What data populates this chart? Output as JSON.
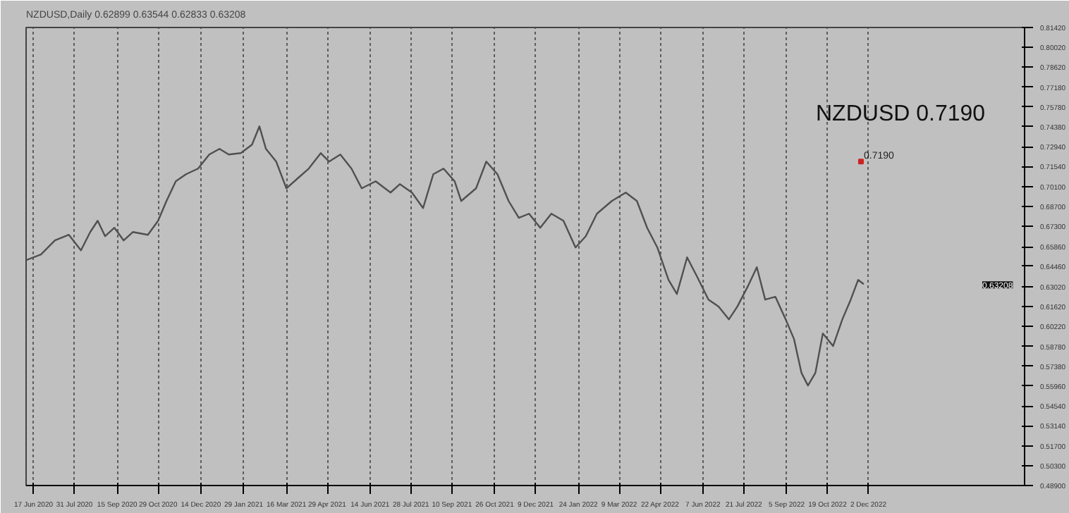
{
  "chart_data": {
    "type": "line",
    "title": "NZDUSD,Daily 0.62899 0.63544 0.62833 0.63208",
    "x": [
      "2020-06-09",
      "2020-06-25",
      "2020-07-10",
      "2020-07-25",
      "2020-08-07",
      "2020-08-17",
      "2020-08-25",
      "2020-09-02",
      "2020-09-12",
      "2020-09-22",
      "2020-10-02",
      "2020-10-18",
      "2020-10-29",
      "2020-11-07",
      "2020-11-17",
      "2020-11-28",
      "2020-12-11",
      "2020-12-23",
      "2021-01-03",
      "2021-01-13",
      "2021-01-26",
      "2021-02-07",
      "2021-02-15",
      "2021-02-22",
      "2021-03-05",
      "2021-03-16",
      "2021-03-28",
      "2021-04-09",
      "2021-04-22",
      "2021-05-01",
      "2021-05-13",
      "2021-05-25",
      "2021-06-05",
      "2021-06-20",
      "2021-07-06",
      "2021-07-16",
      "2021-07-29",
      "2021-08-10",
      "2021-08-21",
      "2021-09-01",
      "2021-09-13",
      "2021-09-20",
      "2021-10-06",
      "2021-10-17",
      "2021-10-29",
      "2021-11-10",
      "2021-11-21",
      "2021-12-02",
      "2021-12-14",
      "2021-12-26",
      "2022-01-08",
      "2022-01-21",
      "2022-02-01",
      "2022-02-13",
      "2022-03-01",
      "2022-03-16",
      "2022-03-28",
      "2022-04-08",
      "2022-04-19",
      "2022-05-01",
      "2022-05-10",
      "2022-05-21",
      "2022-06-01",
      "2022-06-13",
      "2022-06-24",
      "2022-07-05",
      "2022-07-14",
      "2022-07-25",
      "2022-08-04",
      "2022-08-13",
      "2022-08-24",
      "2022-09-04",
      "2022-09-13",
      "2022-09-21",
      "2022-09-28",
      "2022-10-06",
      "2022-10-14",
      "2022-10-25",
      "2022-11-04",
      "2022-11-13",
      "2022-11-21",
      "2022-11-27"
    ],
    "series": [
      {
        "color": "#505050",
        "values": [
          0.649,
          0.653,
          0.663,
          0.667,
          0.656,
          0.669,
          0.677,
          0.666,
          0.672,
          0.663,
          0.669,
          0.667,
          0.677,
          0.691,
          0.705,
          0.71,
          0.714,
          0.724,
          0.728,
          0.724,
          0.725,
          0.731,
          0.744,
          0.728,
          0.719,
          0.7,
          0.707,
          0.714,
          0.725,
          0.719,
          0.724,
          0.714,
          0.7,
          0.705,
          0.697,
          0.703,
          0.697,
          0.686,
          0.71,
          0.714,
          0.705,
          0.691,
          0.7,
          0.719,
          0.71,
          0.691,
          0.679,
          0.682,
          0.672,
          0.682,
          0.677,
          0.658,
          0.666,
          0.682,
          0.691,
          0.697,
          0.691,
          0.672,
          0.658,
          0.635,
          0.625,
          0.651,
          0.637,
          0.621,
          0.616,
          0.607,
          0.616,
          0.63,
          0.644,
          0.621,
          0.623,
          0.607,
          0.593,
          0.569,
          0.56,
          0.569,
          0.597,
          0.588,
          0.607,
          0.621,
          0.635,
          0.632
        ]
      }
    ],
    "xlim": [
      "2020-06-09",
      "2023-05-19"
    ],
    "xticks": [
      {
        "value": "2020-06-17",
        "label": "17 Jun 2020"
      },
      {
        "value": "2020-07-31",
        "label": "31 Jul 2020"
      },
      {
        "value": "2020-09-15",
        "label": "15 Sep 2020"
      },
      {
        "value": "2020-10-29",
        "label": "29 Oct 2020"
      },
      {
        "value": "2020-12-14",
        "label": "14 Dec 2020"
      },
      {
        "value": "2021-01-29",
        "label": "29 Jan 2021"
      },
      {
        "value": "2021-03-16",
        "label": "16 Mar 2021"
      },
      {
        "value": "2021-04-29",
        "label": "29 Apr 2021"
      },
      {
        "value": "2021-06-14",
        "label": "14 Jun 2021"
      },
      {
        "value": "2021-07-28",
        "label": "28 Jul 2021"
      },
      {
        "value": "2021-09-10",
        "label": "10 Sep 2021"
      },
      {
        "value": "2021-10-26",
        "label": "26 Oct 2021"
      },
      {
        "value": "2021-12-09",
        "label": "9 Dec 2021"
      },
      {
        "value": "2022-01-24",
        "label": "24 Jan 2022"
      },
      {
        "value": "2022-03-09",
        "label": "9 Mar 2022"
      },
      {
        "value": "2022-04-22",
        "label": "22 Apr 2022"
      },
      {
        "value": "2022-06-07",
        "label": "7 Jun 2022"
      },
      {
        "value": "2022-07-21",
        "label": "21 Jul 2022"
      },
      {
        "value": "2022-09-05",
        "label": "5 Sep 2022"
      },
      {
        "value": "2022-10-19",
        "label": "19 Oct 2022"
      },
      {
        "value": "2022-12-02",
        "label": "2 Dec 2022"
      }
    ],
    "ylim": [
      0.489,
      0.8142
    ],
    "yticks": [
      {
        "value": 0.8142,
        "label": "0.81420"
      },
      {
        "value": 0.8002,
        "label": "0.80020"
      },
      {
        "value": 0.7862,
        "label": "0.78620"
      },
      {
        "value": 0.7718,
        "label": "0.77180"
      },
      {
        "value": 0.7578,
        "label": "0.75780"
      },
      {
        "value": 0.7438,
        "label": "0.74380"
      },
      {
        "value": 0.7294,
        "label": "0.72940"
      },
      {
        "value": 0.7154,
        "label": "0.71540"
      },
      {
        "value": 0.701,
        "label": "0.70100"
      },
      {
        "value": 0.687,
        "label": "0.68700"
      },
      {
        "value": 0.673,
        "label": "0.67300"
      },
      {
        "value": 0.6586,
        "label": "0.65860"
      },
      {
        "value": 0.6446,
        "label": "0.64460"
      },
      {
        "value": 0.6302,
        "label": "0.63020"
      },
      {
        "value": 0.6162,
        "label": "0.61620"
      },
      {
        "value": 0.6022,
        "label": "0.60220"
      },
      {
        "value": 0.5878,
        "label": "0.58780"
      },
      {
        "value": 0.5738,
        "label": "0.57380"
      },
      {
        "value": 0.5596,
        "label": "0.55960"
      },
      {
        "value": 0.5454,
        "label": "0.54540"
      },
      {
        "value": 0.5314,
        "label": "0.53140"
      },
      {
        "value": 0.517,
        "label": "0.51700"
      },
      {
        "value": 0.503,
        "label": "0.50300"
      },
      {
        "value": 0.489,
        "label": "0.48900"
      }
    ],
    "grid": "x",
    "marker": "none",
    "line_style": "solid",
    "annotations": [
      "NZDUSD 0.7190",
      {
        "text": "0.7190",
        "x": "2022-11-24",
        "y": 0.719
      },
      "0.63208"
    ]
  }
}
